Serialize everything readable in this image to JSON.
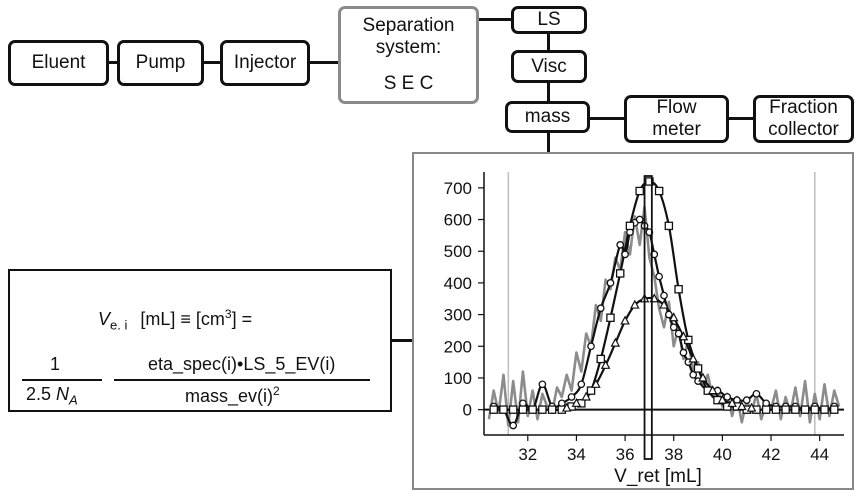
{
  "blocks": {
    "eluent": "Eluent",
    "pump": "Pump",
    "injector": "Injector",
    "separation_line1": "Separation",
    "separation_line2": "system:",
    "separation_line3": "S E C",
    "ls": "LS",
    "visc": "Visc",
    "mass": "mass",
    "flow_line1": "Flow",
    "flow_line2": "meter",
    "fraction_line1": "Fraction",
    "fraction_line2": "collector"
  },
  "colors": {
    "line": "#111111",
    "grey_border": "#8a8a8a",
    "grey_series": "#8c8c8c"
  },
  "formula": {
    "v_symbol": "V",
    "v_subscript": "e. i",
    "units": "[mL] ≡ [cm",
    "units_sup": "3",
    "units_end": "] =",
    "frac1_num": "1",
    "frac1_den_a": "2.5 ",
    "frac1_den_b": "N",
    "frac1_den_sub": "A",
    "frac2_num": "eta_spec(i)•LS_5_EV(i)",
    "frac2_den": "mass_ev(i)",
    "frac2_den_sup": "2"
  },
  "chart_data": {
    "type": "line",
    "xlabel": "V_ret [mL]",
    "ylabel": "",
    "xlim": [
      30.2,
      45.0
    ],
    "ylim": [
      -80,
      750
    ],
    "xticks": [
      32,
      34,
      36,
      38,
      40,
      42,
      44
    ],
    "yticks": [
      0,
      100,
      200,
      300,
      400,
      500,
      600,
      700
    ],
    "vertical_gridlines": [
      31.2,
      43.8
    ],
    "highlight_band": {
      "x": [
        36.8,
        37.1
      ],
      "y": [
        -200,
        750
      ]
    },
    "grid": false,
    "series": [
      {
        "marker": "none",
        "color": "#8c8c8c",
        "x": [
          30.4,
          30.6,
          30.8,
          31.0,
          31.2,
          31.4,
          31.6,
          31.8,
          32.0,
          32.2,
          32.4,
          32.6,
          32.8,
          33.0,
          33.2,
          33.4,
          33.6,
          33.8,
          34.0,
          34.2,
          34.4,
          34.6,
          34.8,
          35.0,
          35.2,
          35.4,
          35.6,
          35.8,
          36.0,
          36.2,
          36.4,
          36.6,
          36.8,
          37.0,
          37.2,
          37.4,
          37.6,
          37.8,
          38.0,
          38.2,
          38.4,
          38.6,
          38.8,
          39.0,
          39.2,
          39.4,
          39.6,
          39.8,
          40.0,
          40.2,
          40.4,
          40.6,
          40.8,
          41.0,
          41.2,
          41.4,
          41.6,
          41.8,
          42.0,
          42.2,
          42.4,
          42.6,
          42.8,
          43.0,
          43.2,
          43.4,
          43.6,
          43.8,
          44.0,
          44.2,
          44.4,
          44.6,
          44.8
        ],
        "y": [
          -30,
          60,
          -10,
          110,
          -50,
          90,
          -40,
          120,
          -20,
          60,
          -30,
          50,
          10,
          -10,
          70,
          40,
          110,
          60,
          180,
          120,
          240,
          200,
          330,
          280,
          410,
          380,
          480,
          440,
          560,
          490,
          610,
          520,
          640,
          480,
          420,
          320,
          260,
          340,
          200,
          260,
          160,
          220,
          120,
          150,
          80,
          110,
          40,
          70,
          10,
          50,
          -20,
          40,
          -40,
          30,
          -10,
          50,
          -30,
          20,
          0,
          60,
          -30,
          40,
          -10,
          70,
          -20,
          90,
          -40,
          50,
          -30,
          80,
          -20,
          60,
          10
        ]
      },
      {
        "marker": "circle",
        "color": "#111111",
        "x": [
          30.6,
          31.0,
          31.4,
          31.8,
          32.2,
          32.6,
          33.0,
          33.4,
          33.8,
          34.2,
          34.6,
          35.0,
          35.4,
          35.8,
          36.0,
          36.2,
          36.4,
          36.6,
          36.8,
          37.0,
          37.2,
          37.4,
          37.6,
          37.8,
          38.0,
          38.2,
          38.4,
          38.6,
          38.8,
          39.0,
          39.4,
          39.8,
          40.2,
          40.6,
          41.0,
          41.4,
          41.8,
          42.2,
          42.6,
          43.0,
          43.4,
          43.8,
          44.2,
          44.6
        ],
        "y": [
          10,
          0,
          -50,
          20,
          0,
          80,
          10,
          20,
          40,
          80,
          200,
          320,
          400,
          520,
          490,
          560,
          590,
          600,
          580,
          560,
          490,
          420,
          360,
          300,
          260,
          240,
          180,
          150,
          110,
          90,
          60,
          60,
          40,
          30,
          30,
          50,
          20,
          10,
          10,
          10,
          0,
          10,
          0,
          10
        ],
        "line": "smooth"
      },
      {
        "marker": "square",
        "color": "#111111",
        "x": [
          30.6,
          31.0,
          31.4,
          31.8,
          32.2,
          32.6,
          33.0,
          33.4,
          33.8,
          34.2,
          34.6,
          35.0,
          35.4,
          35.8,
          36.2,
          36.6,
          37.0,
          37.4,
          37.8,
          38.2,
          38.6,
          39.0,
          39.4,
          39.8,
          40.2,
          40.6,
          41.0,
          41.4,
          41.8,
          42.2,
          42.6,
          43.0,
          43.4,
          43.8,
          44.2,
          44.6
        ],
        "y": [
          0,
          0,
          0,
          0,
          0,
          0,
          0,
          0,
          10,
          20,
          60,
          160,
          290,
          430,
          580,
          690,
          720,
          690,
          580,
          380,
          220,
          130,
          60,
          30,
          10,
          10,
          0,
          0,
          0,
          0,
          0,
          0,
          0,
          0,
          0,
          0
        ],
        "line": "smooth"
      },
      {
        "marker": "triangle",
        "color": "#111111",
        "x": [
          33.6,
          34.0,
          34.4,
          34.8,
          35.2,
          35.6,
          36.0,
          36.4,
          36.8,
          37.2,
          37.6,
          38.0,
          38.4,
          38.8,
          39.2,
          39.6,
          40.0,
          40.4,
          40.8,
          41.2
        ],
        "y": [
          5,
          20,
          40,
          80,
          140,
          210,
          280,
          330,
          350,
          350,
          330,
          290,
          230,
          160,
          100,
          60,
          30,
          20,
          10,
          5
        ],
        "line": "smooth"
      }
    ]
  }
}
